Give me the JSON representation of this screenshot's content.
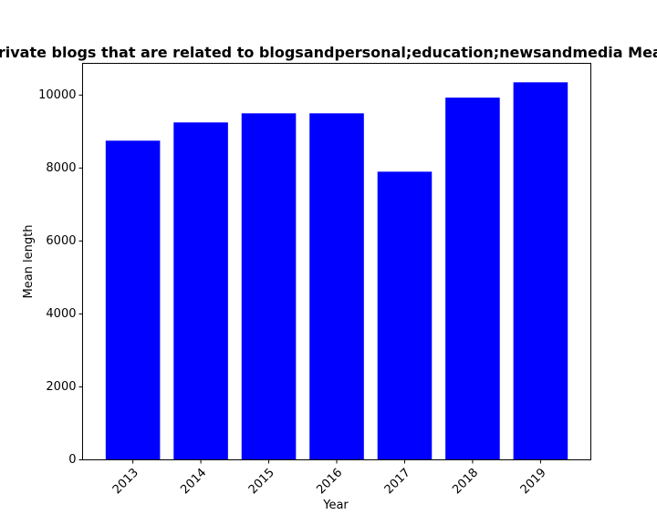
{
  "chart_data": {
    "type": "bar",
    "title": "Mean length of private blogs that are related to blogsandpersonal;education;newsandmedia Mean length in private",
    "xlabel": "Year",
    "ylabel": "Mean length",
    "categories": [
      "2013",
      "2014",
      "2015",
      "2016",
      "2017",
      "2018",
      "2019"
    ],
    "values": [
      8750,
      9250,
      9500,
      9500,
      7900,
      9930,
      10350
    ],
    "ylim": [
      0,
      10870
    ],
    "yticks": [
      0,
      2000,
      4000,
      6000,
      8000,
      10000
    ],
    "ytick_labels": [
      "0",
      "2000",
      "4000",
      "6000",
      "8000",
      "10000"
    ],
    "bar_color": "#0000ff",
    "grid": false,
    "legend": "none",
    "xtick_rotation": "45"
  }
}
